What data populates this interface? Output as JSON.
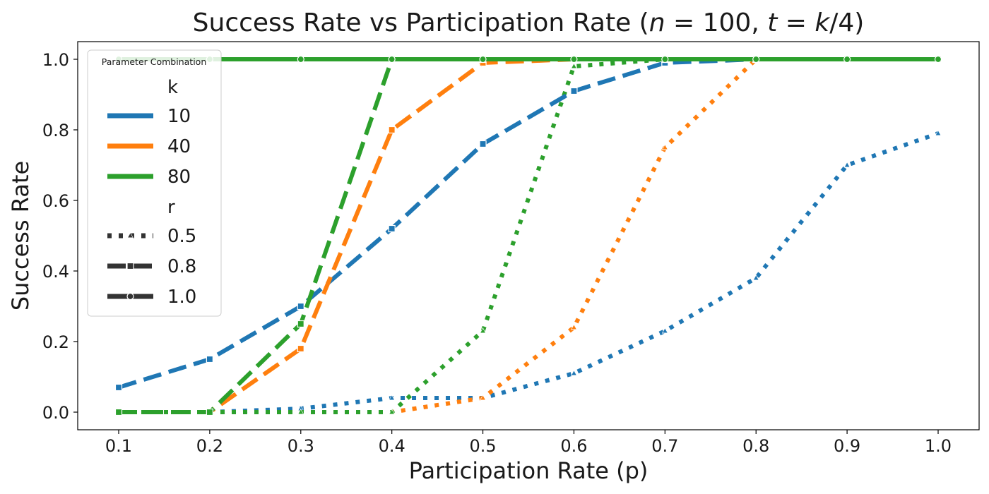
{
  "chart_data": {
    "type": "line",
    "title": "Success Rate vs Participation Rate (n = 100, t = k/4)",
    "title_parts": {
      "main": "Success Rate vs Participation Rate (",
      "n": "n",
      "eq1": " = 100, ",
      "t": "t",
      "eq2": " = ",
      "k": "k",
      "tail": "/4)"
    },
    "xlabel": "Participation Rate (p)",
    "ylabel": "Success Rate",
    "xlim": [
      0.055,
      1.045
    ],
    "ylim": [
      -0.05,
      1.05
    ],
    "xticks": [
      "0.1",
      "0.2",
      "0.3",
      "0.4",
      "0.5",
      "0.6",
      "0.7",
      "0.8",
      "0.9",
      "1.0"
    ],
    "yticks": [
      "0.0",
      "0.2",
      "0.4",
      "0.6",
      "0.8",
      "1.0"
    ],
    "x": [
      0.1,
      0.2,
      0.3,
      0.4,
      0.5,
      0.6,
      0.7,
      0.8,
      0.9,
      1.0
    ],
    "colors": {
      "10": "#1f77b4",
      "40": "#ff7f0e",
      "80": "#2ca02c"
    },
    "legend": {
      "title": "Parameter Combination",
      "placement": "upper-left",
      "k_header": "k",
      "k_entries": [
        "10",
        "40",
        "80"
      ],
      "r_header": "r",
      "r_entries": [
        "0.5",
        "0.8",
        "1.0"
      ]
    },
    "series": [
      {
        "name": "k=10, r=0.5",
        "k": "10",
        "r": "0.5",
        "marker": "triangle",
        "values": [
          0.0,
          0.0,
          0.01,
          0.04,
          0.04,
          0.11,
          0.23,
          0.38,
          0.7,
          0.79
        ]
      },
      {
        "name": "k=40, r=0.5",
        "k": "40",
        "r": "0.5",
        "marker": "triangle",
        "values": [
          0.0,
          0.0,
          0.0,
          0.0,
          0.04,
          0.24,
          0.75,
          1.0,
          1.0,
          1.0
        ]
      },
      {
        "name": "k=80, r=0.5",
        "k": "80",
        "r": "0.5",
        "marker": "triangle",
        "values": [
          0.0,
          0.0,
          0.0,
          0.0,
          0.23,
          0.98,
          1.0,
          1.0,
          1.0,
          1.0
        ]
      },
      {
        "name": "k=10, r=0.8",
        "k": "10",
        "r": "0.8",
        "marker": "square",
        "values": [
          0.07,
          0.15,
          0.3,
          0.52,
          0.76,
          0.91,
          0.99,
          1.0,
          1.0,
          1.0
        ]
      },
      {
        "name": "k=40, r=0.8",
        "k": "40",
        "r": "0.8",
        "marker": "square",
        "values": [
          0.0,
          0.0,
          0.18,
          0.8,
          0.99,
          1.0,
          1.0,
          1.0,
          1.0,
          1.0
        ]
      },
      {
        "name": "k=80, r=0.8",
        "k": "80",
        "r": "0.8",
        "marker": "square",
        "values": [
          0.0,
          0.0,
          0.25,
          1.0,
          1.0,
          1.0,
          1.0,
          1.0,
          1.0,
          1.0
        ]
      },
      {
        "name": "k=10, r=1.0",
        "k": "10",
        "r": "1.0",
        "marker": "circle",
        "values": [
          1.0,
          1.0,
          1.0,
          1.0,
          1.0,
          1.0,
          1.0,
          1.0,
          1.0,
          1.0
        ]
      },
      {
        "name": "k=40, r=1.0",
        "k": "40",
        "r": "1.0",
        "marker": "circle",
        "values": [
          1.0,
          1.0,
          1.0,
          1.0,
          1.0,
          1.0,
          1.0,
          1.0,
          1.0,
          1.0
        ]
      },
      {
        "name": "k=80, r=1.0",
        "k": "80",
        "r": "1.0",
        "marker": "circle",
        "values": [
          1.0,
          1.0,
          1.0,
          1.0,
          1.0,
          1.0,
          1.0,
          1.0,
          1.0,
          1.0
        ]
      }
    ]
  }
}
